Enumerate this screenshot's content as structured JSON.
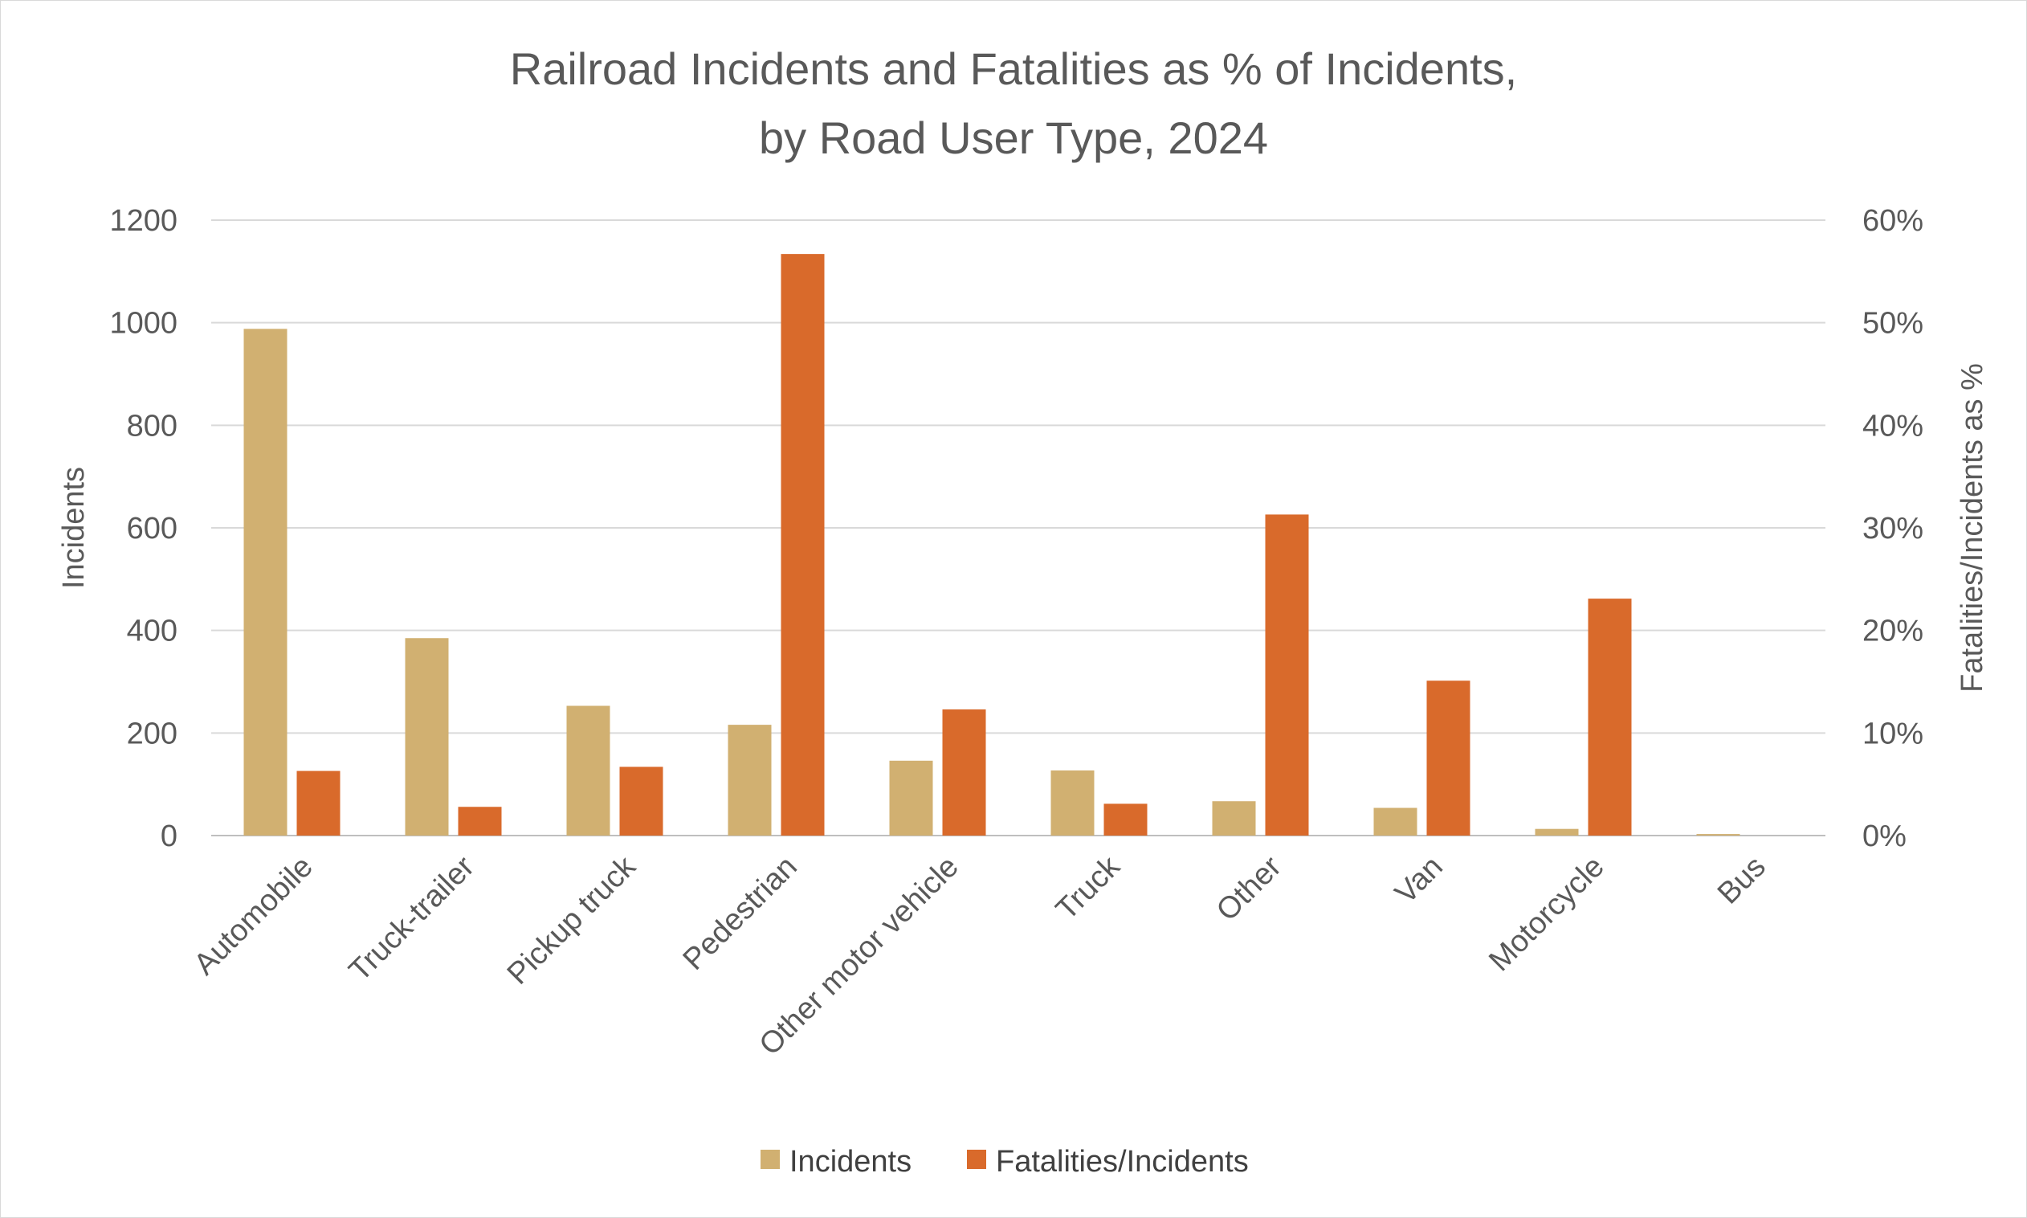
{
  "chart_data": {
    "type": "bar",
    "title_line1": "Railroad Incidents and Fatalities as % of Incidents,",
    "title_line2": "by Road User Type, 2024",
    "ylabel": "Incidents",
    "y2label": "Fatalities/Incidents as %",
    "ylim": [
      0,
      1200
    ],
    "y2lim": [
      0,
      0.6
    ],
    "yticks": [
      "0",
      "200",
      "400",
      "600",
      "800",
      "1000",
      "1200"
    ],
    "y2ticks": [
      "0%",
      "10%",
      "20%",
      "30%",
      "40%",
      "50%",
      "60%"
    ],
    "grid": true,
    "legend_position": "bottom",
    "categories": [
      "Automobile",
      "Truck-trailer",
      "Pickup truck",
      "Pedestrian",
      "Other motor vehicle",
      "Truck",
      "Other",
      "Van",
      "Motorcycle",
      "Bus"
    ],
    "series": [
      {
        "name": "Incidents",
        "axis": "left",
        "color": "#d1b071",
        "values": [
          988,
          385,
          253,
          216,
          146,
          127,
          67,
          54,
          13,
          3
        ]
      },
      {
        "name": "Fatalities/Incidents",
        "axis": "right",
        "color": "#d96a2b",
        "values": [
          0.063,
          0.028,
          0.067,
          0.567,
          0.123,
          0.031,
          0.313,
          0.151,
          0.231,
          0.0
        ]
      }
    ]
  }
}
